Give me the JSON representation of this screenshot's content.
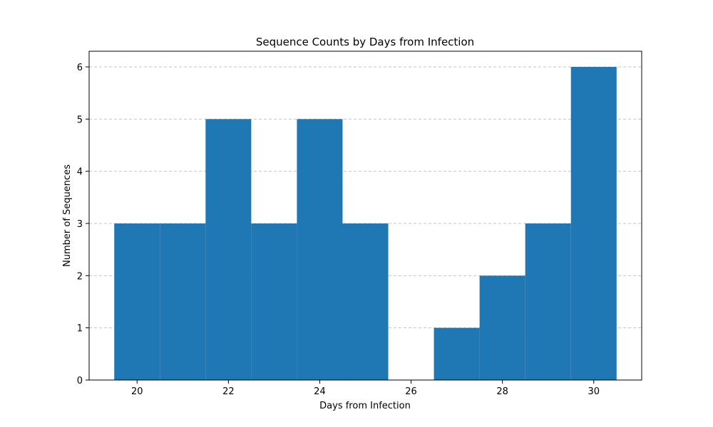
{
  "chart_data": {
    "type": "bar",
    "title": "Sequence Counts by Days from Infection",
    "xlabel": "Days from Infection",
    "ylabel": "Number of Sequences",
    "x": [
      20,
      21,
      22,
      23,
      24,
      25,
      26,
      27,
      28,
      29,
      30
    ],
    "values": [
      3,
      3,
      5,
      3,
      5,
      3,
      0,
      1,
      2,
      3,
      6
    ],
    "bar_width": 1,
    "xlim": [
      18.95,
      31.05
    ],
    "ylim": [
      0,
      6.3
    ],
    "xticks": [
      20,
      22,
      24,
      26,
      28,
      30
    ],
    "yticks": [
      0,
      1,
      2,
      3,
      4,
      5,
      6
    ],
    "grid": "y-dashed",
    "bar_color": "#1f77b4",
    "grid_color": "#c4c4c4"
  }
}
